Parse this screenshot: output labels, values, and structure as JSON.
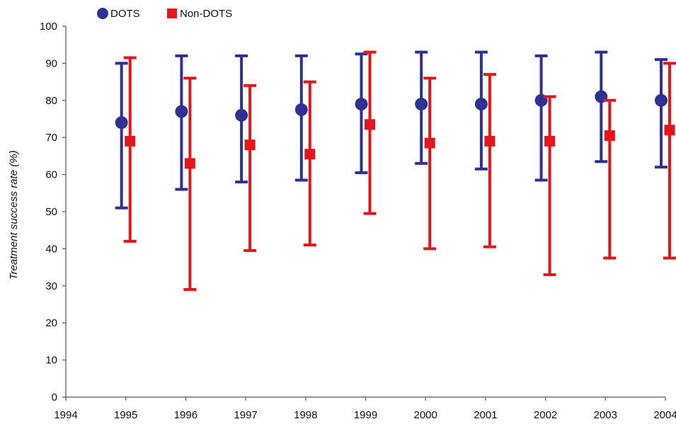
{
  "chart_data": {
    "type": "scatter",
    "title": "",
    "xlabel": "",
    "ylabel": "Treatment success rate (%)",
    "xlim": [
      1994,
      2004
    ],
    "ylim": [
      0,
      100
    ],
    "x_ticks": [
      1994,
      1995,
      1996,
      1997,
      1998,
      1999,
      2000,
      2001,
      2002,
      2003,
      2004
    ],
    "y_ticks": [
      0,
      10,
      20,
      30,
      40,
      50,
      60,
      70,
      80,
      90,
      100
    ],
    "grid": false,
    "legend_position": "top-left",
    "series": [
      {
        "name": "DOTS",
        "color": "#2e3192",
        "marker": "circle",
        "x": [
          1995,
          1996,
          1997,
          1998,
          1999,
          2000,
          2001,
          2002,
          2003,
          2004
        ],
        "values": [
          74,
          77,
          76,
          77.5,
          79,
          79,
          79,
          80,
          81,
          80
        ],
        "low": [
          51,
          56,
          58,
          58.5,
          60.5,
          63,
          61.5,
          58.5,
          63.5,
          62
        ],
        "high": [
          90,
          92,
          92,
          92,
          92.5,
          93,
          93,
          92,
          93,
          91
        ]
      },
      {
        "name": "Non-DOTS",
        "color": "#e3161b",
        "marker": "square",
        "x": [
          1995,
          1996,
          1997,
          1998,
          1999,
          2000,
          2001,
          2002,
          2003,
          2004
        ],
        "values": [
          69,
          63,
          68,
          65.5,
          73.5,
          68.5,
          69,
          69,
          70.5,
          72
        ],
        "low": [
          42,
          29,
          39.5,
          41,
          49.5,
          40,
          40.5,
          33,
          37.5,
          37.5
        ],
        "high": [
          91.5,
          86,
          84,
          85,
          93,
          86,
          87,
          81,
          80,
          90
        ]
      }
    ]
  }
}
